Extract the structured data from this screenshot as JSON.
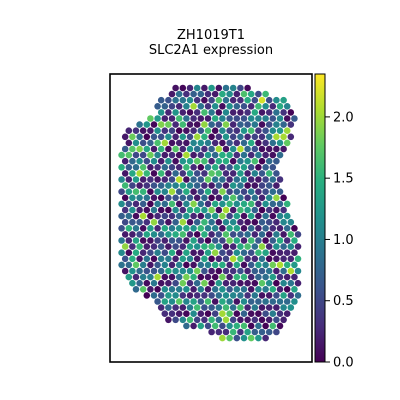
{
  "chart_data": {
    "type": "scatter",
    "title_line1": "ZH1019T1",
    "title_line2": "SLC2A1 expression",
    "xlabel": "",
    "ylabel": "",
    "colormap": "viridis",
    "colorbar": {
      "min": 0.0,
      "max": 2.35,
      "ticks": [
        0.0,
        0.5,
        1.0,
        1.5,
        2.0
      ],
      "tick_labels": [
        "0.0",
        "0.5",
        "1.0",
        "1.5",
        "2.0"
      ],
      "placement": "right"
    },
    "spot_grid": "hexagonal",
    "approx_mean_expression": 0.9,
    "bright_spots": [
      {
        "row": 2,
        "col": 20,
        "value": 2.2
      },
      {
        "row": 8,
        "col": 11,
        "value": 2.0
      },
      {
        "row": 15,
        "col": 8,
        "value": 2.1
      },
      {
        "row": 17,
        "col": 7,
        "value": 2.0
      },
      {
        "row": 19,
        "col": 10,
        "value": 1.9
      },
      {
        "row": 40,
        "col": 8,
        "value": 2.3
      },
      {
        "row": 41,
        "col": 14,
        "value": 2.0
      },
      {
        "row": 44,
        "col": 21,
        "value": 2.0
      }
    ]
  }
}
